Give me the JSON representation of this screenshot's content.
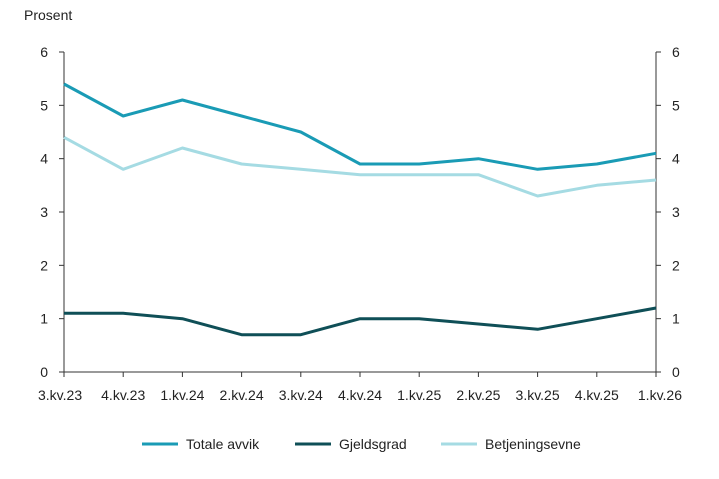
{
  "chart_data": {
    "type": "line",
    "ylabel": "Prosent",
    "categories": [
      "3.kv.23",
      "4.kv.23",
      "1.kv.24",
      "2.kv.24",
      "3.kv.24",
      "4.kv.24",
      "1.kv.25",
      "2.kv.25",
      "3.kv.25",
      "4.kv.25",
      "1.kv.26"
    ],
    "ylim": [
      0,
      6
    ],
    "yticks": [
      0,
      1,
      2,
      3,
      4,
      5,
      6
    ],
    "secondary_y_axis": true,
    "grid": false,
    "legend_position": "bottom",
    "series": [
      {
        "name": "Totale avvik",
        "color": "#1a9bb5",
        "values": [
          5.4,
          4.8,
          5.1,
          4.8,
          4.5,
          3.9,
          3.9,
          4.0,
          3.8,
          3.9,
          4.1
        ]
      },
      {
        "name": "Gjeldsgrad",
        "color": "#0f4f57",
        "values": [
          1.1,
          1.1,
          1.0,
          0.7,
          0.7,
          1.0,
          1.0,
          0.9,
          0.8,
          1.0,
          1.2
        ]
      },
      {
        "name": "Betjeningsevne",
        "color": "#a5dbe3",
        "values": [
          4.4,
          3.8,
          4.2,
          3.9,
          3.8,
          3.7,
          3.7,
          3.7,
          3.3,
          3.5,
          3.6
        ]
      }
    ]
  }
}
